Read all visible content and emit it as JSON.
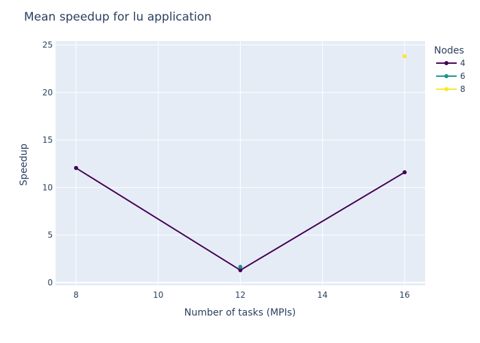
{
  "colors": {
    "plot_background": "#e5ecf6",
    "grid": "#ffffff",
    "text": "#2a3f5f"
  },
  "chart_data": {
    "type": "line",
    "title": "Mean speedup for lu application",
    "xlabel": "Number of tasks (MPIs)",
    "ylabel": "Speedup",
    "xlim": [
      7.5,
      16.5
    ],
    "ylim": [
      -0.3,
      25.4
    ],
    "x_ticks": [
      8,
      10,
      12,
      14,
      16
    ],
    "y_ticks": [
      0,
      5,
      10,
      15,
      20,
      25
    ],
    "grid": true,
    "legend": {
      "title": "Nodes",
      "placement": "top-right"
    },
    "series": [
      {
        "name": "4",
        "color": "#440154",
        "x": [
          8,
          12,
          16
        ],
        "y": [
          12.05,
          1.3,
          11.6
        ]
      },
      {
        "name": "6",
        "color": "#21918c",
        "x": [
          12
        ],
        "y": [
          1.65
        ]
      },
      {
        "name": "8",
        "color": "#fde725",
        "x": [
          16
        ],
        "y": [
          23.8
        ]
      }
    ]
  }
}
